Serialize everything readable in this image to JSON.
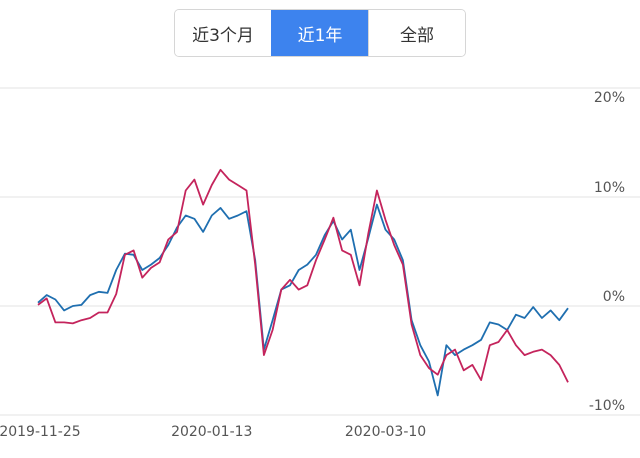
{
  "tabs": [
    "近3个月",
    "近1年",
    "全部"
  ],
  "selected_tab": 1,
  "chart_data": {
    "type": "line",
    "categories": [
      "2019-11-25",
      null,
      null,
      null,
      null,
      null,
      null,
      null,
      null,
      null,
      null,
      null,
      null,
      null,
      null,
      null,
      null,
      null,
      null,
      null,
      "2020-01-13",
      null,
      null,
      null,
      null,
      null,
      null,
      null,
      null,
      null,
      null,
      null,
      null,
      null,
      null,
      null,
      null,
      null,
      null,
      null,
      "2020-03-10",
      null,
      null,
      null,
      null,
      null,
      null,
      null,
      null,
      null,
      null,
      null,
      null,
      null,
      null,
      null,
      null,
      null,
      null,
      null,
      null,
      null
    ],
    "series": [
      {
        "color": "#1f6fb0",
        "values": [
          0.3,
          1.0,
          0.6,
          -0.4,
          0,
          0.1,
          1.0,
          1.3,
          1.2,
          3.3,
          4.8,
          4.7,
          3.3,
          3.8,
          4.4,
          5.6,
          7.2,
          8.3,
          8.0,
          6.8,
          8.3,
          9.0,
          8.0,
          8.3,
          8.7,
          4.2,
          -4.0,
          -1.3,
          1.5,
          1.9,
          3.3,
          3.8,
          4.7,
          6.5,
          7.8,
          6.1,
          7.0,
          3.3,
          6.2,
          9.3,
          7.0,
          6.1,
          4.2,
          -1.3,
          -3.6,
          -5.1,
          -8.2,
          -3.6,
          -4.5,
          -4.0,
          -3.6,
          -3.1,
          -1.5,
          -1.7,
          -2.2,
          -0.8,
          -1.1,
          -0.1,
          -1.1,
          -0.4,
          -1.3,
          -0.2
        ]
      },
      {
        "color": "#c4245c",
        "values": [
          0.1,
          0.7,
          -1.5,
          -1.5,
          -1.6,
          -1.3,
          -1.1,
          -0.6,
          -0.6,
          1.1,
          4.7,
          5.1,
          2.6,
          3.5,
          4.0,
          6.1,
          6.8,
          10.6,
          11.6,
          9.3,
          11.1,
          12.5,
          11.6,
          11.1,
          10.6,
          3.8,
          -4.5,
          -2.2,
          1.5,
          2.4,
          1.5,
          1.9,
          4.2,
          6.1,
          8.1,
          5.1,
          4.7,
          1.9,
          6.6,
          10.6,
          7.9,
          5.6,
          3.8,
          -1.7,
          -4.5,
          -5.7,
          -6.3,
          -4.5,
          -4.0,
          -5.9,
          -5.4,
          -6.8,
          -3.6,
          -3.3,
          -2.2,
          -3.6,
          -4.5,
          -4.2,
          -4.0,
          -4.5,
          -5.4,
          -7.0
        ]
      }
    ],
    "ylim": [
      -10,
      20
    ],
    "yticks": [
      {
        "value": -10,
        "label": "-10%"
      },
      {
        "value": 0,
        "label": "0%"
      },
      {
        "value": 10,
        "label": "10%"
      },
      {
        "value": 20,
        "label": "20%"
      }
    ],
    "grid": true
  }
}
